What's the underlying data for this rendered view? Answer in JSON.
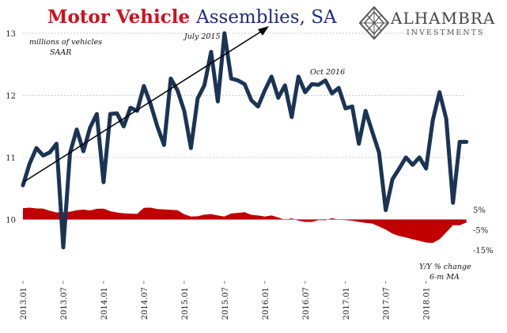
{
  "header": {
    "title_red": "Motor Vehicle",
    "title_blue": "Assemblies, SA"
  },
  "logo": {
    "name": "ALHAMBRA",
    "subtitle": "INVESTMENTS",
    "icon": "diamond-lattice-icon"
  },
  "colors": {
    "series_line": "#1b3456",
    "yoy_fill": "#c00000",
    "title_red": "#d0101b",
    "title_blue": "#1f2b7a",
    "grid": "#bcbcbc",
    "trend_arrow": "#000000"
  },
  "chart_data": {
    "type": "line",
    "title": "Motor Vehicle Assemblies, SA",
    "x_tick_labels": [
      "2013.01",
      "2013.07",
      "2014.01",
      "2014.07",
      "2015.01",
      "2015.07",
      "2016.01",
      "2016.07",
      "2017.01",
      "2017.07",
      "2018.01"
    ],
    "ylim_left": [
      9.1,
      13.0
    ],
    "y_ticks_left": [
      "10",
      "11",
      "12",
      "13"
    ],
    "y_ticks_right": [
      "5%",
      "-5%",
      "-15%"
    ],
    "ylim_right": [
      -15,
      20
    ],
    "grid": true,
    "annotations": {
      "units": [
        "millions of vehicles",
        "SAAR"
      ],
      "peak": "July 2015",
      "oct": "Oct 2016",
      "yoy_label": [
        "Y/Y % change",
        "6-m MA"
      ]
    },
    "series": [
      {
        "units": "millions of vehicles, SAAR",
        "axis": "left",
        "x": [
          "2013-01",
          "2013-02",
          "2013-03",
          "2013-04",
          "2013-05",
          "2013-06",
          "2013-07",
          "2013-08",
          "2013-09",
          "2013-10",
          "2013-11",
          "2013-12",
          "2014-01",
          "2014-02",
          "2014-03",
          "2014-04",
          "2014-05",
          "2014-06",
          "2014-07",
          "2014-08",
          "2014-09",
          "2014-10",
          "2014-11",
          "2014-12",
          "2015-01",
          "2015-02",
          "2015-03",
          "2015-04",
          "2015-05",
          "2015-06",
          "2015-07",
          "2015-08",
          "2015-09",
          "2015-10",
          "2015-11",
          "2015-12",
          "2016-01",
          "2016-02",
          "2016-03",
          "2016-04",
          "2016-05",
          "2016-06",
          "2016-07",
          "2016-08",
          "2016-09",
          "2016-10",
          "2016-11",
          "2016-12",
          "2017-01",
          "2017-02",
          "2017-03",
          "2017-04",
          "2017-05",
          "2017-06",
          "2017-07",
          "2017-08",
          "2017-09",
          "2017-10",
          "2017-11",
          "2017-12",
          "2018-01",
          "2018-02",
          "2018-03",
          "2018-04",
          "2018-05",
          "2018-06",
          "2018-07"
        ],
        "values": [
          10.55,
          10.9,
          11.15,
          11.03,
          11.08,
          11.22,
          9.55,
          11.07,
          11.45,
          11.1,
          11.48,
          11.7,
          10.6,
          11.7,
          11.71,
          11.5,
          11.8,
          11.75,
          12.15,
          11.86,
          11.5,
          11.2,
          12.27,
          12.08,
          11.75,
          11.15,
          11.95,
          12.16,
          12.7,
          11.9,
          13.0,
          12.27,
          12.24,
          12.18,
          11.92,
          11.82,
          12.08,
          12.3,
          11.96,
          12.16,
          11.65,
          12.3,
          12.05,
          12.18,
          12.17,
          12.24,
          12.03,
          12.12,
          11.79,
          11.82,
          11.22,
          11.75,
          11.41,
          11.08,
          10.15,
          10.65,
          10.82,
          11.0,
          10.88,
          11.0,
          10.82,
          11.6,
          12.05,
          11.62,
          10.27,
          11.25,
          11.25
        ]
      },
      {
        "units": "Y/Y % change, 6-m MA",
        "axis": "right",
        "x": [
          "2013-01",
          "2013-02",
          "2013-03",
          "2013-04",
          "2013-05",
          "2013-06",
          "2013-07",
          "2013-08",
          "2013-09",
          "2013-10",
          "2013-11",
          "2013-12",
          "2014-01",
          "2014-02",
          "2014-03",
          "2014-04",
          "2014-05",
          "2014-06",
          "2014-07",
          "2014-08",
          "2014-09",
          "2014-10",
          "2014-11",
          "2014-12",
          "2015-01",
          "2015-02",
          "2015-03",
          "2015-04",
          "2015-05",
          "2015-06",
          "2015-07",
          "2015-08",
          "2015-09",
          "2015-10",
          "2015-11",
          "2015-12",
          "2016-01",
          "2016-02",
          "2016-03",
          "2016-04",
          "2016-05",
          "2016-06",
          "2016-07",
          "2016-08",
          "2016-09",
          "2016-10",
          "2016-11",
          "2016-12",
          "2017-01",
          "2017-02",
          "2017-03",
          "2017-04",
          "2017-05",
          "2017-06",
          "2017-07",
          "2017-08",
          "2017-09",
          "2017-10",
          "2017-11",
          "2017-12",
          "2018-01",
          "2018-02",
          "2018-03",
          "2018-04",
          "2018-05",
          "2018-06",
          "2018-07"
        ],
        "values": [
          5.6,
          5.9,
          5.5,
          5.4,
          4.3,
          3.5,
          3.6,
          3.9,
          4.6,
          4.9,
          4.5,
          5.3,
          5.4,
          4.1,
          3.4,
          3.1,
          2.9,
          2.8,
          5.8,
          5.9,
          5.2,
          5.0,
          4.8,
          4.6,
          2.6,
          1.5,
          1.6,
          2.4,
          2.7,
          2.0,
          1.5,
          3.0,
          3.3,
          3.6,
          2.3,
          2.0,
          1.5,
          2.0,
          1.0,
          -0.2,
          0.6,
          -0.6,
          -1.2,
          -1.2,
          -0.3,
          -0.4,
          0.7,
          -0.1,
          -0.3,
          -0.6,
          -1.2,
          -1.7,
          -2.0,
          -3.5,
          -5.0,
          -7.0,
          -8.2,
          -8.9,
          -9.8,
          -10.6,
          -11.4,
          -11.6,
          -9.8,
          -6.4,
          -2.8,
          -2.9,
          -1.5
        ]
      }
    ]
  }
}
